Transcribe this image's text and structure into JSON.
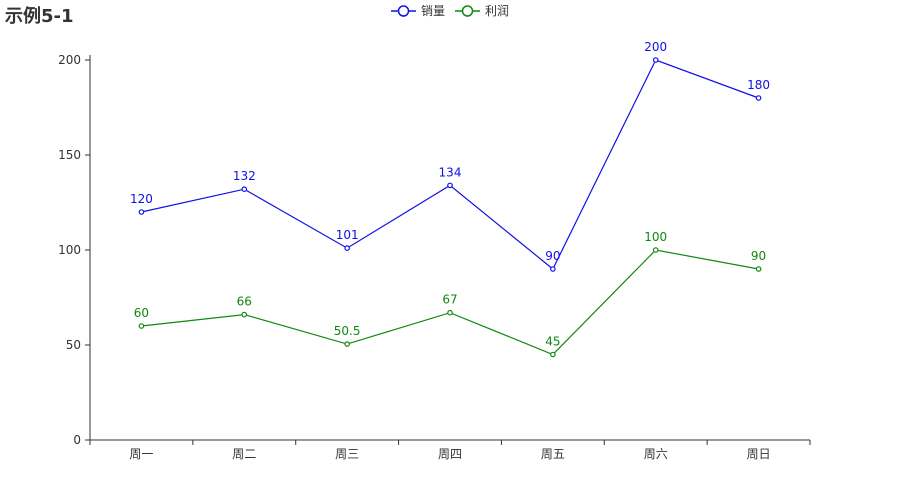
{
  "chart_data": {
    "type": "line",
    "title": "示例5-1",
    "categories": [
      "周一",
      "周二",
      "周三",
      "周四",
      "周五",
      "周六",
      "周日"
    ],
    "series": [
      {
        "name": "销量",
        "color": "#1010e8",
        "values": [
          120,
          132,
          101,
          134,
          90,
          200,
          180
        ],
        "labels": [
          "120",
          "132",
          "101",
          "134",
          "90",
          "200",
          "180"
        ]
      },
      {
        "name": "利润",
        "color": "#118811",
        "values": [
          60,
          66,
          50.5,
          67,
          45,
          100,
          90
        ],
        "labels": [
          "60",
          "66",
          "50.5",
          "67",
          "45",
          "100",
          "90"
        ]
      }
    ],
    "ylim": [
      0,
      200
    ],
    "yticks": [
      "0",
      "50",
      "100",
      "150",
      "200"
    ],
    "ytick_values": [
      0,
      50,
      100,
      150,
      200
    ],
    "xlabel": "",
    "ylabel": "",
    "legend_position": "top-center",
    "grid": false,
    "marker": "empty-circle"
  }
}
